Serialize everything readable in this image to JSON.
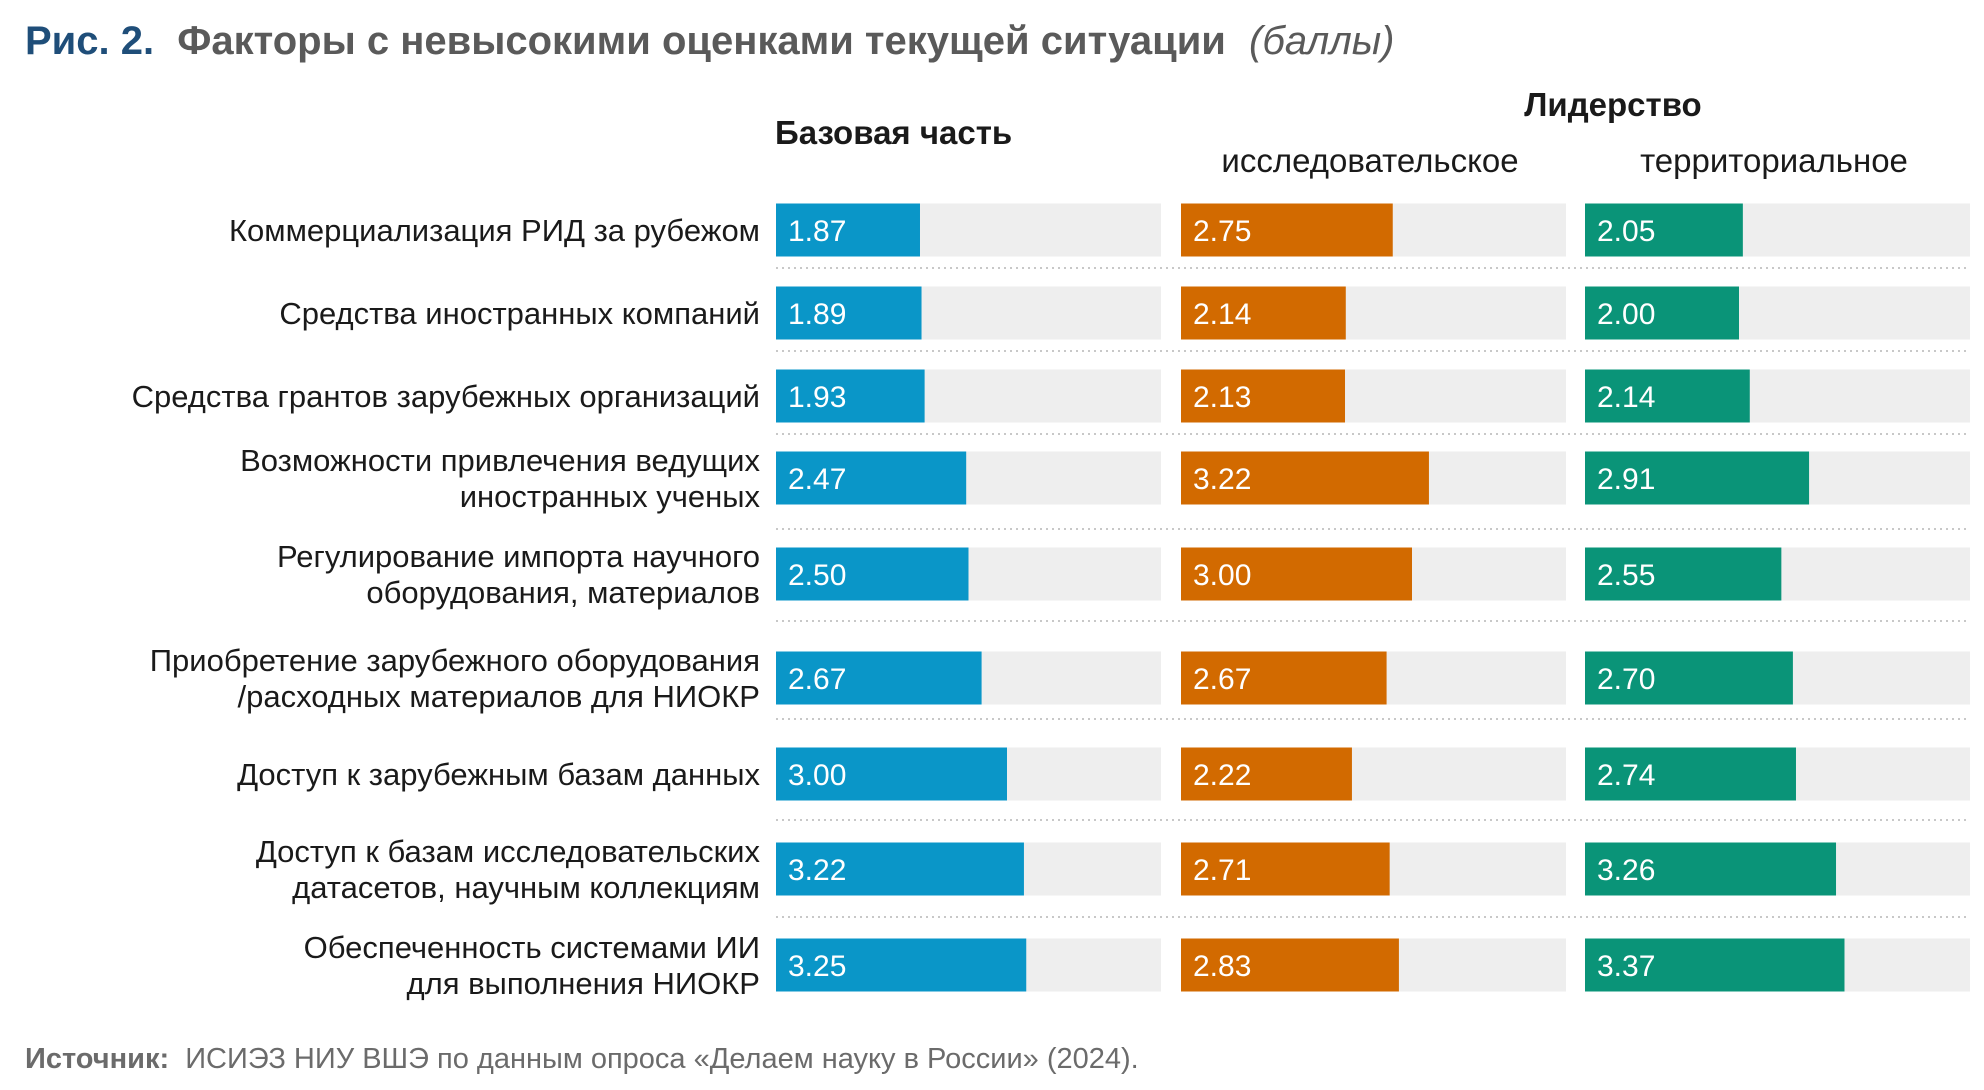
{
  "title": {
    "figure": "Рис. 2.",
    "main": "Факторы с невысокими оценками текущей ситуации",
    "unit": "(баллы)"
  },
  "headers": {
    "base": "Базовая часть",
    "leadership": "Лидерство",
    "research": "исследовательское",
    "territorial": "территориальное"
  },
  "source": {
    "label": "Источник:",
    "text": "ИСИЭЗ НИУ ВШЭ по данным опроса «Делаем науку в России» (2024)."
  },
  "colors": {
    "base": "#0a96c8",
    "research": "#d26a00",
    "territorial": "#0a9478",
    "track": "#eeeeee",
    "separator": "#c8c8c8"
  },
  "chart_data": {
    "type": "bar",
    "orientation": "horizontal",
    "xlim": [
      0,
      5
    ],
    "categories": [
      [
        "Коммерциализация РИД за рубежом"
      ],
      [
        "Средства иностранных компаний"
      ],
      [
        "Средства грантов зарубежных организаций"
      ],
      [
        "Возможности привлечения ведущих",
        "иностранных ученых"
      ],
      [
        "Регулирование импорта научного",
        "оборудования, материалов"
      ],
      [
        "Приобретение зарубежного оборудования",
        "/расходных материалов для НИОКР"
      ],
      [
        "Доступ к зарубежным базам данных"
      ],
      [
        "Доступ к базам исследовательских",
        "датасетов, научным коллекциям"
      ],
      [
        "Обеспеченность системами ИИ",
        "для выполнения НИОКР"
      ]
    ],
    "series": [
      {
        "name": "Базовая часть",
        "values": [
          1.87,
          1.89,
          1.93,
          2.47,
          2.5,
          2.67,
          3.0,
          3.22,
          3.25
        ]
      },
      {
        "name": "исследовательское",
        "values": [
          2.75,
          2.14,
          2.13,
          3.22,
          3.0,
          2.67,
          2.22,
          2.71,
          2.83
        ]
      },
      {
        "name": "территориальное",
        "values": [
          2.05,
          2.0,
          2.14,
          2.91,
          2.55,
          2.7,
          2.74,
          3.26,
          3.37
        ]
      }
    ]
  }
}
